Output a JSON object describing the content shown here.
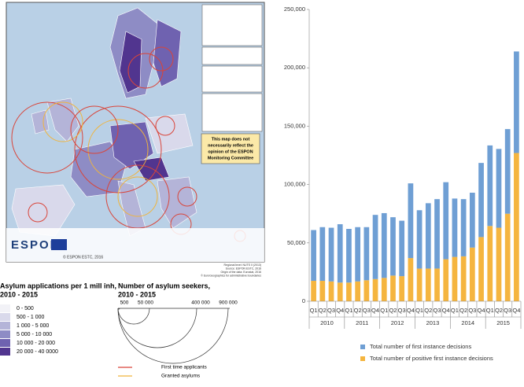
{
  "map": {
    "note": [
      "This map does not",
      "necessarily reflect the",
      "opinion of the ESPON",
      "Monitoring Committee"
    ],
    "logo": "ESPON",
    "copyright": "© ESPON ESTC, 2016",
    "credits": [
      "Regional level: NUTS 0 (2013)",
      "Source: ESPON ESTC, 2016",
      "Origin of the data: Eurostat, 2016",
      "© EuroGeographics for administrative boundaries"
    ],
    "legend_classes": {
      "title": [
        "Asylum applications per 1 mill inh,",
        "2010 - 2015"
      ],
      "classes": [
        {
          "label": "0 - 500",
          "color": "#f2f2f7"
        },
        {
          "label": "500 - 1 000",
          "color": "#d9d9eb"
        },
        {
          "label": "1 000 - 5 000",
          "color": "#b4b4d8"
        },
        {
          "label": "5 000 - 10 000",
          "color": "#8e8cc5"
        },
        {
          "label": "10 000 - 20 000",
          "color": "#6f62b0"
        },
        {
          "label": "20 000 - 40 0000",
          "color": "#51358f"
        }
      ]
    },
    "legend_circles": {
      "title": [
        "Number of asylum seekers,",
        "2010 - 2015"
      ],
      "scale": [
        "500",
        "50 000",
        "400 000",
        "900 000"
      ],
      "lines": [
        {
          "label": "First time applicants",
          "color": "#d9453a"
        },
        {
          "label": "Granted asylums",
          "color": "#f0b43c"
        }
      ]
    }
  },
  "chart_data": {
    "type": "bar",
    "stacked": true,
    "categories": [
      "Q1",
      "Q2",
      "Q3",
      "Q4",
      "Q1",
      "Q2",
      "Q3",
      "Q4",
      "Q1",
      "Q2",
      "Q3",
      "Q4",
      "Q1",
      "Q2",
      "Q3",
      "Q4",
      "Q1",
      "Q2",
      "Q3",
      "Q4",
      "Q1",
      "Q2",
      "Q3",
      "Q4"
    ],
    "groups": [
      "2010",
      "2011",
      "2012",
      "2013",
      "2014",
      "2015"
    ],
    "series": [
      {
        "name": "Total number of positive first instance decisions",
        "color": "#f5b53f",
        "values": [
          17500,
          17500,
          17000,
          16000,
          16000,
          17000,
          18000,
          19000,
          20000,
          22000,
          21500,
          37000,
          28000,
          28000,
          28000,
          36000,
          38000,
          38500,
          46000,
          55000,
          64500,
          63000,
          75000,
          127000
        ]
      },
      {
        "name": "Total number of first instance decisions",
        "color": "#6f9fd4",
        "values": [
          43500,
          46000,
          46000,
          50000,
          46000,
          46500,
          45500,
          55000,
          55500,
          50000,
          47500,
          64000,
          50000,
          56000,
          59500,
          66000,
          50000,
          49000,
          47000,
          63500,
          69000,
          67500,
          72500,
          87000
        ]
      }
    ],
    "ylim": [
      0,
      250000
    ],
    "yticks": [
      0,
      {
        "value": 50000,
        "label": "50,000"
      },
      {
        "value": 100000,
        "label": "100,000"
      },
      {
        "value": 150000,
        "label": "150,000"
      },
      {
        "value": 200000,
        "label": "200,000"
      },
      {
        "value": 250000,
        "label": "250,000"
      }
    ],
    "grid": false,
    "legend": "bottom"
  }
}
